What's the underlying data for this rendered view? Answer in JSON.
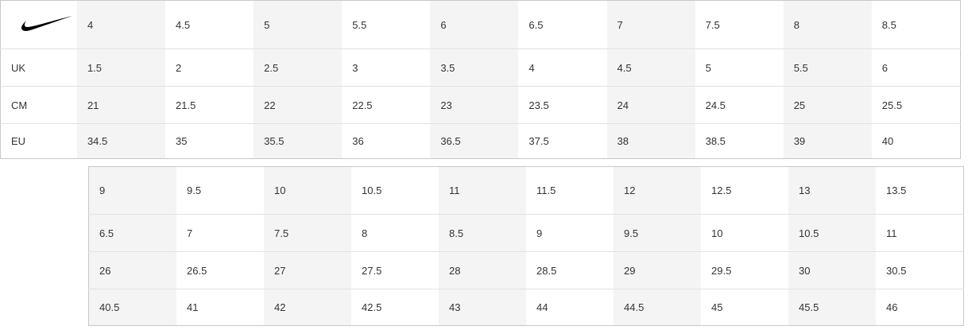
{
  "logo": {
    "brand": "Nike",
    "icon": "swoosh-icon"
  },
  "row_labels": [
    "UK",
    "CM",
    "EU"
  ],
  "top_table": {
    "us": [
      "4",
      "4.5",
      "5",
      "5.5",
      "6",
      "6.5",
      "7",
      "7.5",
      "8",
      "8.5"
    ],
    "uk": [
      "1.5",
      "2",
      "2.5",
      "3",
      "3.5",
      "4",
      "4.5",
      "5",
      "5.5",
      "6"
    ],
    "cm": [
      "21",
      "21.5",
      "22",
      "22.5",
      "23",
      "23.5",
      "24",
      "24.5",
      "25",
      "25.5"
    ],
    "eu": [
      "34.5",
      "35",
      "35.5",
      "36",
      "36.5",
      "37.5",
      "38",
      "38.5",
      "39",
      "40"
    ]
  },
  "bottom_table": {
    "us": [
      "9",
      "9.5",
      "10",
      "10.5",
      "11",
      "11.5",
      "12",
      "12.5",
      "13",
      "13.5"
    ],
    "uk": [
      "6.5",
      "7",
      "7.5",
      "8",
      "8.5",
      "9",
      "9.5",
      "10",
      "10.5",
      "11"
    ],
    "cm": [
      "26",
      "26.5",
      "27",
      "27.5",
      "28",
      "28.5",
      "29",
      "29.5",
      "30",
      "30.5"
    ],
    "eu": [
      "40.5",
      "41",
      "42",
      "42.5",
      "43",
      "44",
      "44.5",
      "45",
      "45.5",
      "46"
    ]
  },
  "colors": {
    "shade": "#f4f4f4",
    "border": "#c8c8c8",
    "text": "#333333"
  }
}
